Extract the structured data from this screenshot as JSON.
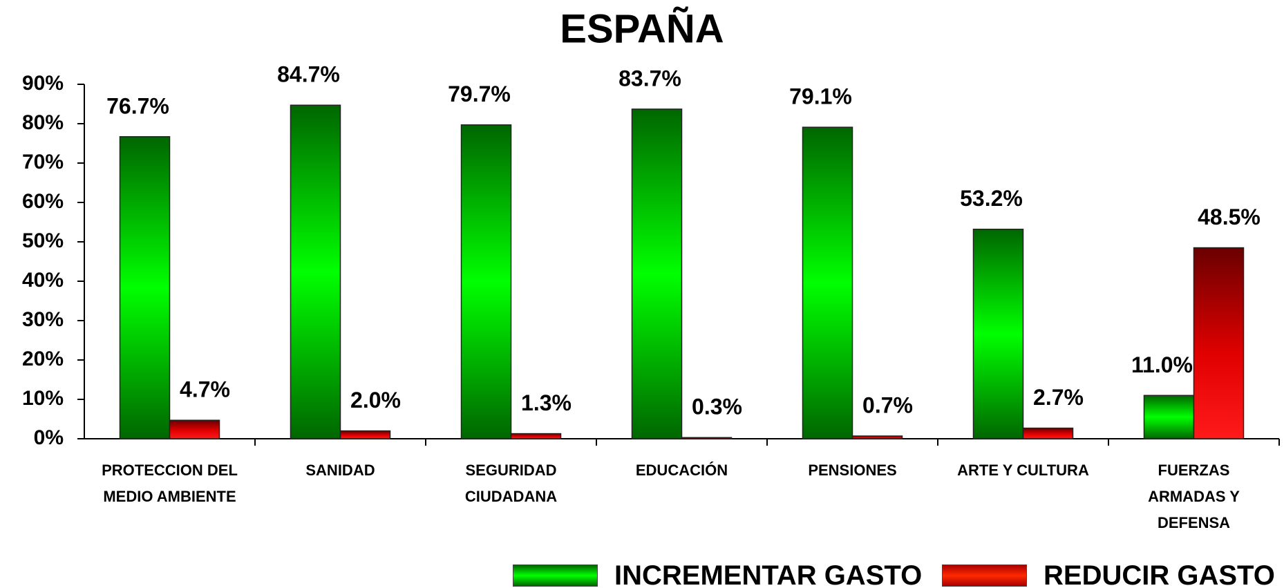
{
  "chart_data": {
    "type": "bar",
    "title": "ESPAÑA",
    "categories": [
      "PROTECCION DEL MEDIO AMBIENTE",
      "SANIDAD",
      "SEGURIDAD CIUDADANA",
      "EDUCACIÓN",
      "PENSIONES",
      "ARTE Y CULTURA",
      "FUERZAS ARMADAS Y DEFENSA"
    ],
    "series": [
      {
        "name": "INCREMENTAR GASTO",
        "color": "#00ee00",
        "values": [
          76.7,
          84.7,
          79.7,
          83.7,
          79.1,
          53.2,
          11.0
        ],
        "value_labels": [
          "76.7%",
          "84.7%",
          "79.7%",
          "83.7%",
          "79.1%",
          "53.2%",
          "11.0%"
        ]
      },
      {
        "name": "REDUCIR GASTO",
        "color": "#ee0000",
        "values": [
          4.7,
          2.0,
          1.3,
          0.3,
          0.7,
          2.7,
          48.5
        ],
        "value_labels": [
          "4.7%",
          "2.0%",
          "1.3%",
          "0.3%",
          "0.7%",
          "2.7%",
          "48.5%"
        ]
      }
    ],
    "ylim": [
      0,
      90
    ],
    "yticks": [
      {
        "value": 0,
        "label": "0%"
      },
      {
        "value": 10,
        "label": "10%"
      },
      {
        "value": 20,
        "label": "20%"
      },
      {
        "value": 30,
        "label": "30%"
      },
      {
        "value": 40,
        "label": "40%"
      },
      {
        "value": 50,
        "label": "50%"
      },
      {
        "value": 60,
        "label": "60%"
      },
      {
        "value": 70,
        "label": "70%"
      },
      {
        "value": 80,
        "label": "80%"
      },
      {
        "value": 90,
        "label": "90%"
      }
    ],
    "grid": false,
    "legend": "bottom"
  }
}
